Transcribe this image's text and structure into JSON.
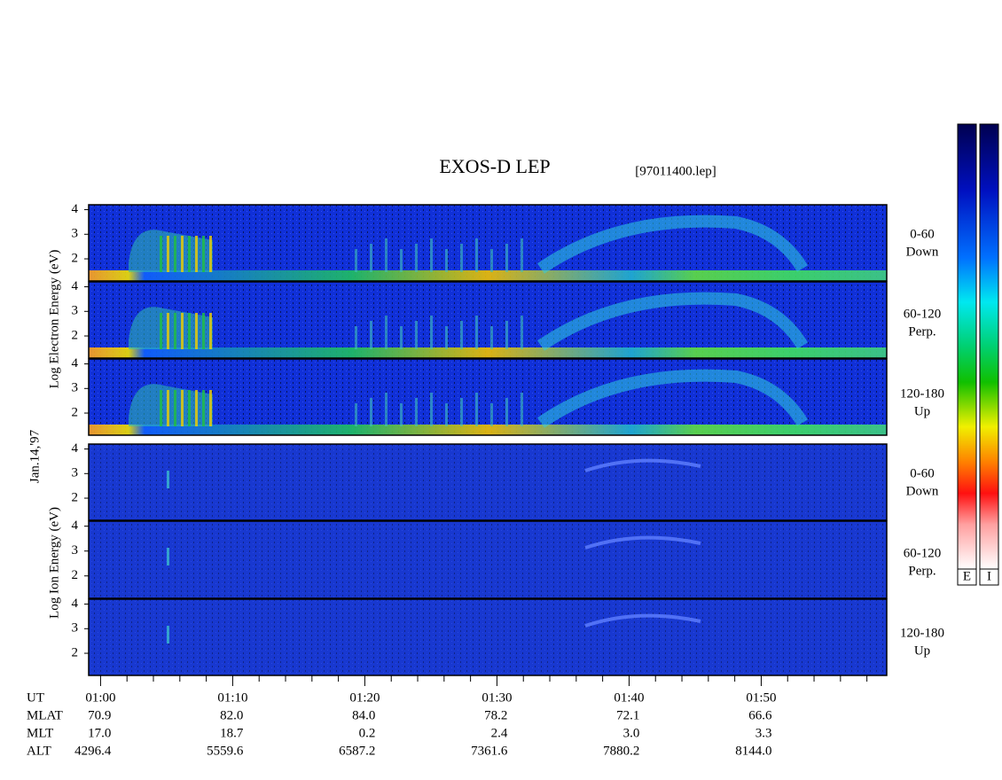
{
  "chart_data": {
    "type": "spectrogram",
    "title": "EXOS-D LEP",
    "file_label": "[97011400.lep]",
    "date_label": "Jan.14,'97",
    "xlim": [
      59.1,
      119.5
    ],
    "xticks": [
      {
        "value": 60,
        "label": "01:00"
      },
      {
        "value": 70,
        "label": "01:10"
      },
      {
        "value": 80,
        "label": "01:20"
      },
      {
        "value": 90,
        "label": "01:30"
      },
      {
        "value": 100,
        "label": "01:40"
      },
      {
        "value": 110,
        "label": "01:50"
      }
    ],
    "xminor_ticks": [
      62,
      64,
      66,
      68,
      72,
      74,
      76,
      78,
      82,
      84,
      86,
      88,
      92,
      94,
      96,
      98,
      102,
      104,
      106,
      108,
      112,
      114,
      116,
      118
    ],
    "ylim": [
      1.1,
      4.2
    ],
    "yticks": [
      2,
      3,
      4
    ],
    "groups": [
      {
        "ylabel": "Log  Electron  Energy (eV)",
        "panels": [
          {
            "channel": "0-60",
            "direction": "Down"
          },
          {
            "channel": "60-120",
            "direction": "Perp."
          },
          {
            "channel": "120-180",
            "direction": "Up"
          }
        ]
      },
      {
        "ylabel": "Log  Ion  Energy (eV)",
        "panels": [
          {
            "channel": "0-60",
            "direction": "Down"
          },
          {
            "channel": "60-120",
            "direction": "Perp."
          },
          {
            "channel": "120-180",
            "direction": "Up"
          }
        ]
      }
    ],
    "colorbars": [
      "E",
      "I"
    ],
    "ephemeris": {
      "time_label": "UT",
      "rows": [
        {
          "name": "MLAT",
          "values": [
            "70.9",
            "82.0",
            "84.0",
            "78.2",
            "72.1",
            "66.6"
          ]
        },
        {
          "name": "MLT",
          "values": [
            "17.0",
            "18.7",
            "0.2",
            "2.4",
            "3.0",
            "3.3"
          ]
        },
        {
          "name": "ALT",
          "values": [
            "4296.4",
            "5559.6",
            "6587.2",
            "7361.6",
            "7880.2",
            "8144.0"
          ]
        }
      ]
    }
  }
}
